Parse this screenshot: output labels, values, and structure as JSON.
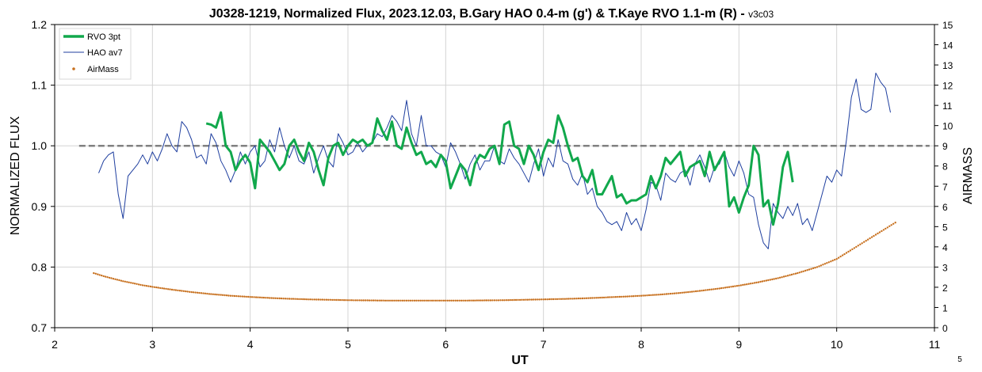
{
  "chart_data": {
    "type": "line",
    "title": "J0328-1219, Normalized Flux, 2023.12.03, B.Gary HAO 0.4-m (g') & T.Kaye RVO 1.1-m (R) - ",
    "subtitle": "v3c03",
    "xlabel": "UT",
    "ylabel": "NORMALIZED FLUX",
    "y2label": "AIRMASS",
    "corner_note": "5",
    "xlim": [
      2,
      11
    ],
    "ylim": [
      0.7,
      1.2
    ],
    "y2lim": [
      0,
      15
    ],
    "xticks": [
      "2",
      "3",
      "4",
      "5",
      "6",
      "7",
      "8",
      "9",
      "10",
      "11"
    ],
    "yticks": [
      "0.7",
      "0.8",
      "0.9",
      "1.0",
      "1.1",
      "1.2"
    ],
    "y2ticks": [
      "0",
      "1",
      "2",
      "3",
      "4",
      "5",
      "6",
      "7",
      "8",
      "9",
      "10",
      "11",
      "12",
      "13",
      "14",
      "15"
    ],
    "grid": true,
    "legend_position": "top-left",
    "reference_line": {
      "y": 1.0,
      "x_start": 2.25,
      "x_end": 10.95,
      "color": "#808080"
    },
    "series": [
      {
        "name": "RVO 3pt",
        "color": "#11a84c",
        "x": [
          3.55,
          3.6,
          3.65,
          3.7,
          3.75,
          3.8,
          3.85,
          3.9,
          3.95,
          4.0,
          4.05,
          4.1,
          4.15,
          4.2,
          4.25,
          4.3,
          4.35,
          4.4,
          4.45,
          4.5,
          4.55,
          4.6,
          4.65,
          4.7,
          4.75,
          4.8,
          4.85,
          4.9,
          4.95,
          5.0,
          5.05,
          5.1,
          5.15,
          5.2,
          5.25,
          5.3,
          5.35,
          5.4,
          5.45,
          5.5,
          5.55,
          5.6,
          5.65,
          5.7,
          5.75,
          5.8,
          5.85,
          5.9,
          5.95,
          6.0,
          6.05,
          6.1,
          6.15,
          6.2,
          6.25,
          6.3,
          6.35,
          6.4,
          6.45,
          6.5,
          6.55,
          6.6,
          6.65,
          6.7,
          6.75,
          6.8,
          6.85,
          6.9,
          6.95,
          7.0,
          7.05,
          7.1,
          7.15,
          7.2,
          7.25,
          7.3,
          7.35,
          7.4,
          7.45,
          7.5,
          7.55,
          7.6,
          7.65,
          7.7,
          7.75,
          7.8,
          7.85,
          7.9,
          7.95,
          8.0,
          8.05,
          8.1,
          8.15,
          8.2,
          8.25,
          8.3,
          8.35,
          8.4,
          8.45,
          8.5,
          8.55,
          8.6,
          8.65,
          8.7,
          8.75,
          8.8,
          8.85,
          8.9,
          8.95,
          9.0,
          9.05,
          9.1,
          9.15,
          9.2,
          9.25,
          9.3,
          9.35,
          9.4,
          9.45,
          9.5,
          9.55
        ],
        "y": [
          1.037,
          1.035,
          1.03,
          1.055,
          1.0,
          0.99,
          0.96,
          0.975,
          0.985,
          0.972,
          0.93,
          1.01,
          1.0,
          0.99,
          0.975,
          0.96,
          0.97,
          1.0,
          1.01,
          0.99,
          0.975,
          1.005,
          0.99,
          0.96,
          0.935,
          0.98,
          1.0,
          1.005,
          0.985,
          1.0,
          1.01,
          1.005,
          1.01,
          1.0,
          1.005,
          1.045,
          1.025,
          1.01,
          1.04,
          1.0,
          0.995,
          1.03,
          1.005,
          0.985,
          0.99,
          0.97,
          0.975,
          0.965,
          0.985,
          0.975,
          0.93,
          0.95,
          0.97,
          0.96,
          0.935,
          0.97,
          0.985,
          0.98,
          0.995,
          1.0,
          0.97,
          1.035,
          1.04,
          1.0,
          0.995,
          0.97,
          1.0,
          0.985,
          0.96,
          0.99,
          1.01,
          1.005,
          1.05,
          1.03,
          1.0,
          0.975,
          0.98,
          0.95,
          0.94,
          0.96,
          0.92,
          0.92,
          0.935,
          0.95,
          0.915,
          0.92,
          0.905,
          0.91,
          0.91,
          0.915,
          0.92,
          0.95,
          0.93,
          0.95,
          0.98,
          0.97,
          0.98,
          0.99,
          0.95,
          0.965,
          0.97,
          0.975,
          0.95,
          0.99,
          0.96,
          0.975,
          0.99,
          0.9,
          0.915,
          0.89,
          0.915,
          0.935,
          1.0,
          0.985,
          0.9,
          0.91,
          0.87,
          0.905,
          0.965,
          0.99,
          0.94
        ]
      },
      {
        "name": "HAO av7",
        "color": "#1f3f9f",
        "x": [
          2.45,
          2.5,
          2.55,
          2.6,
          2.65,
          2.7,
          2.75,
          2.8,
          2.85,
          2.9,
          2.95,
          3.0,
          3.05,
          3.1,
          3.15,
          3.2,
          3.25,
          3.3,
          3.35,
          3.4,
          3.45,
          3.5,
          3.55,
          3.6,
          3.65,
          3.7,
          3.75,
          3.8,
          3.85,
          3.9,
          3.95,
          4.0,
          4.05,
          4.1,
          4.15,
          4.2,
          4.25,
          4.3,
          4.35,
          4.4,
          4.45,
          4.5,
          4.55,
          4.6,
          4.65,
          4.7,
          4.75,
          4.8,
          4.85,
          4.9,
          4.95,
          5.0,
          5.05,
          5.1,
          5.15,
          5.2,
          5.25,
          5.3,
          5.35,
          5.4,
          5.45,
          5.5,
          5.55,
          5.6,
          5.65,
          5.7,
          5.75,
          5.8,
          5.85,
          5.9,
          5.95,
          6.0,
          6.05,
          6.1,
          6.15,
          6.2,
          6.25,
          6.3,
          6.35,
          6.4,
          6.45,
          6.5,
          6.55,
          6.6,
          6.65,
          6.7,
          6.75,
          6.8,
          6.85,
          6.9,
          6.95,
          7.0,
          7.05,
          7.1,
          7.15,
          7.2,
          7.25,
          7.3,
          7.35,
          7.4,
          7.45,
          7.5,
          7.55,
          7.6,
          7.65,
          7.7,
          7.75,
          7.8,
          7.85,
          7.9,
          7.95,
          8.0,
          8.05,
          8.1,
          8.15,
          8.2,
          8.25,
          8.3,
          8.35,
          8.4,
          8.45,
          8.5,
          8.55,
          8.6,
          8.65,
          8.7,
          8.75,
          8.8,
          8.85,
          8.9,
          8.95,
          9.0,
          9.05,
          9.1,
          9.15,
          9.2,
          9.25,
          9.3,
          9.35,
          9.4,
          9.45,
          9.5,
          9.55,
          9.6,
          9.65,
          9.7,
          9.75,
          9.8,
          9.85,
          9.9,
          9.95,
          10.0,
          10.05,
          10.1,
          10.15,
          10.2,
          10.25,
          10.3,
          10.35,
          10.4,
          10.45,
          10.5,
          10.55
        ],
        "y": [
          0.955,
          0.975,
          0.985,
          0.99,
          0.92,
          0.88,
          0.95,
          0.96,
          0.97,
          0.985,
          0.97,
          0.99,
          0.975,
          0.995,
          1.02,
          1.0,
          0.99,
          1.04,
          1.03,
          1.01,
          0.98,
          0.985,
          0.97,
          1.02,
          1.005,
          0.975,
          0.96,
          0.94,
          0.96,
          0.99,
          0.97,
          0.99,
          1.0,
          0.965,
          0.975,
          1.01,
          0.99,
          1.03,
          1.0,
          0.98,
          1.0,
          0.975,
          0.97,
          0.99,
          0.955,
          0.98,
          1.0,
          0.975,
          0.965,
          1.02,
          1.005,
          0.985,
          0.99,
          1.005,
          0.99,
          1.0,
          1.005,
          1.02,
          1.015,
          1.03,
          1.05,
          1.04,
          1.025,
          1.075,
          1.02,
          1.0,
          1.05,
          1.0,
          1.0,
          0.99,
          0.985,
          0.965,
          1.005,
          0.99,
          0.97,
          0.945,
          0.97,
          0.985,
          0.96,
          0.975,
          0.975,
          1.0,
          0.975,
          0.97,
          0.995,
          0.98,
          0.97,
          0.955,
          0.94,
          0.97,
          0.995,
          0.95,
          0.98,
          0.965,
          1.01,
          0.975,
          0.97,
          0.945,
          0.935,
          0.955,
          0.92,
          0.93,
          0.9,
          0.89,
          0.875,
          0.87,
          0.875,
          0.86,
          0.89,
          0.87,
          0.88,
          0.86,
          0.895,
          0.94,
          0.935,
          0.91,
          0.955,
          0.945,
          0.94,
          0.955,
          0.96,
          0.935,
          0.97,
          0.985,
          0.965,
          0.94,
          0.965,
          0.97,
          0.99,
          0.965,
          0.95,
          0.975,
          0.955,
          0.92,
          0.915,
          0.87,
          0.84,
          0.83,
          0.905,
          0.89,
          0.88,
          0.9,
          0.885,
          0.905,
          0.87,
          0.88,
          0.86,
          0.89,
          0.92,
          0.95,
          0.94,
          0.96,
          0.95,
          1.01,
          1.08,
          1.11,
          1.06,
          1.055,
          1.06,
          1.12,
          1.105,
          1.095,
          1.055
        ]
      },
      {
        "name": "AirMass",
        "color": "#c7701e",
        "axis": "secondary",
        "x": [
          2.4,
          2.5,
          2.6,
          2.7,
          2.8,
          2.9,
          3.0,
          3.2,
          3.4,
          3.6,
          3.8,
          4.0,
          4.2,
          4.4,
          4.6,
          4.8,
          5.0,
          5.2,
          5.4,
          5.6,
          5.8,
          6.0,
          6.2,
          6.4,
          6.6,
          6.8,
          7.0,
          7.2,
          7.4,
          7.6,
          7.8,
          8.0,
          8.2,
          8.4,
          8.6,
          8.8,
          9.0,
          9.2,
          9.4,
          9.6,
          9.8,
          10.0,
          10.1,
          10.2,
          10.3,
          10.4,
          10.5,
          10.6
        ],
        "y": [
          2.7,
          2.55,
          2.42,
          2.3,
          2.2,
          2.1,
          2.02,
          1.88,
          1.76,
          1.66,
          1.58,
          1.52,
          1.47,
          1.43,
          1.4,
          1.38,
          1.36,
          1.35,
          1.34,
          1.34,
          1.34,
          1.34,
          1.34,
          1.35,
          1.36,
          1.38,
          1.4,
          1.42,
          1.45,
          1.49,
          1.53,
          1.58,
          1.64,
          1.72,
          1.82,
          1.94,
          2.08,
          2.25,
          2.45,
          2.7,
          3.0,
          3.4,
          3.7,
          4.0,
          4.3,
          4.6,
          4.9,
          5.2
        ]
      }
    ]
  }
}
